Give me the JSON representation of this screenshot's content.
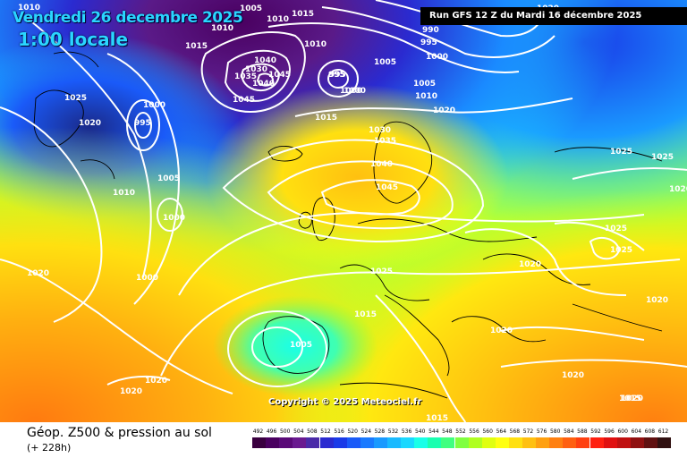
{
  "header": {
    "run_info": "Run GFS 12 Z du Mardi 16 décembre 2025",
    "valid_date": "Vendredi 26 decembre 2025",
    "valid_time": "1:00 locale"
  },
  "copyright": "Copyright © 2025 Meteociel.fr",
  "footer": {
    "title": "Géop. Z500 & pression au sol",
    "subtitle": "(+ 228h)"
  },
  "scale": {
    "labels": [
      "492",
      "496",
      "500",
      "504",
      "508",
      "512",
      "516",
      "520",
      "524",
      "528",
      "532",
      "536",
      "540",
      "544",
      "548",
      "552",
      "556",
      "560",
      "564",
      "568",
      "572",
      "576",
      "580",
      "584",
      "588",
      "592",
      "596",
      "600",
      "604",
      "608",
      "612"
    ],
    "colors": [
      "#3a0040",
      "#4a0060",
      "#5a0a78",
      "#6a1a90",
      "#4a2aa8",
      "#2a2ad0",
      "#1a3ae8",
      "#1a5af8",
      "#1a7aff",
      "#1a9aff",
      "#1abaff",
      "#1ad8ff",
      "#1affe8",
      "#1affb0",
      "#40ff80",
      "#80ff40",
      "#b0ff20",
      "#e0ff10",
      "#ffff10",
      "#ffe010",
      "#ffc010",
      "#ffa010",
      "#ff8010",
      "#ff6010",
      "#ff4010",
      "#ff2010",
      "#e01010",
      "#c01010",
      "#901010",
      "#601010",
      "#301010"
    ]
  },
  "pressure_labels": [
    {
      "text": "1010"
    },
    {
      "text": "1005"
    },
    {
      "text": "1010"
    },
    {
      "text": "1015"
    },
    {
      "text": "1015"
    },
    {
      "text": "1010"
    },
    {
      "text": "1010"
    },
    {
      "text": "1005"
    },
    {
      "text": "1000"
    },
    {
      "text": "995"
    },
    {
      "text": "990"
    },
    {
      "text": "995"
    },
    {
      "text": "1000"
    },
    {
      "text": "1020"
    },
    {
      "text": "1025"
    },
    {
      "text": "1020"
    },
    {
      "text": "995"
    },
    {
      "text": "1000"
    },
    {
      "text": "1030"
    },
    {
      "text": "1035"
    },
    {
      "text": "1040"
    },
    {
      "text": "1045"
    },
    {
      "text": "1040"
    },
    {
      "text": "1045"
    },
    {
      "text": "995"
    },
    {
      "text": "1000"
    },
    {
      "text": "1005"
    },
    {
      "text": "1010"
    },
    {
      "text": "1015"
    },
    {
      "text": "1020"
    },
    {
      "text": "1030"
    },
    {
      "text": "1035"
    },
    {
      "text": "1040"
    },
    {
      "text": "1045"
    },
    {
      "text": "1005"
    },
    {
      "text": "1010"
    },
    {
      "text": "1000"
    },
    {
      "text": "1000"
    },
    {
      "text": "1025"
    },
    {
      "text": "1015"
    },
    {
      "text": "1020"
    },
    {
      "text": "1025"
    },
    {
      "text": "1025"
    },
    {
      "text": "1025"
    },
    {
      "text": "1025"
    },
    {
      "text": "1020"
    },
    {
      "text": "1020"
    },
    {
      "text": "1020"
    },
    {
      "text": "1020"
    },
    {
      "text": "1020"
    },
    {
      "text": "1020"
    },
    {
      "text": "1005"
    },
    {
      "text": "1020"
    },
    {
      "text": "1015"
    },
    {
      "text": "1015"
    },
    {
      "text": "1020"
    }
  ]
}
